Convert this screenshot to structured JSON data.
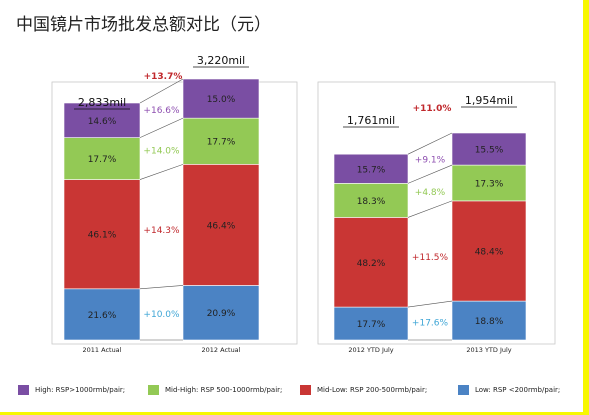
{
  "title": "中国镜片市场批发总额对比（元）",
  "colors": {
    "high": "#7a4ea3",
    "mid_high": "#93c955",
    "mid_low": "#c93634",
    "low": "#4b83c4",
    "growth_total": "#c0282c",
    "growth_high": "#8e4fb0",
    "growth_mid_high": "#93c955",
    "growth_mid_low": "#c0282c",
    "growth_low": "#3fa6d6"
  },
  "legend": [
    {
      "key": "high",
      "label": "High: RSP>1000rmb/pair;"
    },
    {
      "key": "mid_high",
      "label": "Mid-High: RSP 500-1000rmb/pair;"
    },
    {
      "key": "mid_low",
      "label": "Mid-Low: RSP 200-500rmb/pair;"
    },
    {
      "key": "low",
      "label": "Low: RSP <200rmb/pair;"
    }
  ],
  "chart_data": [
    {
      "type": "bar",
      "stacked": true,
      "categories": [
        "2011 Actual",
        "2012 Actual"
      ],
      "totals": [
        "2,833mil",
        "3,220mil"
      ],
      "total_growth": "+13.7%",
      "series": [
        {
          "name": "High: RSP>1000rmb/pair;",
          "key": "high",
          "values": [
            14.6,
            15.0
          ],
          "labels": [
            "14.6%",
            "15.0%"
          ],
          "growth": "+16.6%"
        },
        {
          "name": "Mid-High: RSP 500-1000rmb/pair;",
          "key": "mid_high",
          "values": [
            17.7,
            17.7
          ],
          "labels": [
            "17.7%",
            "17.7%"
          ],
          "growth": "+14.0%"
        },
        {
          "name": "Mid-Low: RSP 200-500rmb/pair;",
          "key": "mid_low",
          "values": [
            46.1,
            46.4
          ],
          "labels": [
            "46.1%",
            "46.4%"
          ],
          "growth": "+14.3%"
        },
        {
          "name": "Low: RSP <200rmb/pair;",
          "key": "low",
          "values": [
            21.6,
            20.9
          ],
          "labels": [
            "21.6%",
            "20.9%"
          ],
          "growth": "+10.0%"
        }
      ]
    },
    {
      "type": "bar",
      "stacked": true,
      "categories": [
        "2012 YTD July",
        "2013 YTD July"
      ],
      "totals": [
        "1,761mil",
        "1,954mil"
      ],
      "total_growth": "+11.0%",
      "series": [
        {
          "name": "High: RSP>1000rmb/pair;",
          "key": "high",
          "values": [
            15.7,
            15.5
          ],
          "labels": [
            "15.7%",
            "15.5%"
          ],
          "growth": "+9.1%"
        },
        {
          "name": "Mid-High: RSP 500-1000rmb/pair;",
          "key": "mid_high",
          "values": [
            18.3,
            17.3
          ],
          "labels": [
            "18.3%",
            "17.3%"
          ],
          "growth": "+4.8%"
        },
        {
          "name": "Mid-Low: RSP 200-500rmb/pair;",
          "key": "mid_low",
          "values": [
            48.2,
            48.4
          ],
          "labels": [
            "48.2%",
            "48.4%"
          ],
          "growth": "+11.5%"
        },
        {
          "name": "Low: RSP <200rmb/pair;",
          "key": "low",
          "values": [
            17.7,
            18.8
          ],
          "labels": [
            "17.7%",
            "18.8%"
          ],
          "growth": "+17.6%"
        }
      ]
    }
  ]
}
